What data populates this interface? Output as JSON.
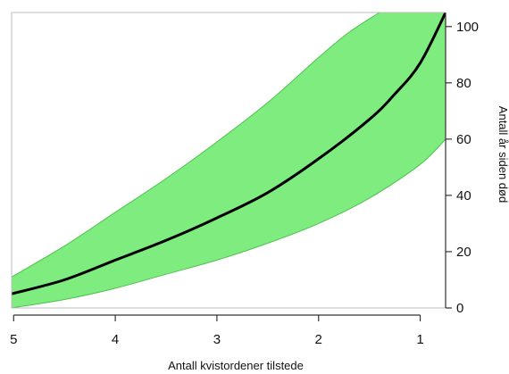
{
  "chart_data": {
    "type": "area",
    "title": "",
    "xlabel": "Antall kvistordener tilstede",
    "ylabel": "Antall år siden død",
    "x_reversed": true,
    "xlim": [
      5.02,
      0.75
    ],
    "ylim": [
      0,
      105
    ],
    "x_ticks": [
      5,
      4,
      3,
      2,
      1
    ],
    "y_ticks": [
      0,
      20,
      40,
      60,
      80,
      100
    ],
    "y_axis_side": "right",
    "grid": false,
    "legend": "none",
    "colors": {
      "band_fill": "#7fec7f",
      "band_edge": "#4fc04f",
      "line": "#000000",
      "axis": "#333333"
    },
    "series": [
      {
        "role": "upper-bound",
        "x": [
          5.02,
          4.5,
          4.0,
          3.5,
          3.0,
          2.5,
          2.0,
          1.7,
          1.4
        ],
        "y": [
          11,
          22,
          34,
          46,
          59,
          73,
          89,
          98,
          105
        ]
      },
      {
        "role": "estimate",
        "x": [
          5.02,
          4.5,
          4.0,
          3.5,
          3.0,
          2.5,
          2.0,
          1.5,
          1.25,
          1.0,
          0.75
        ],
        "y": [
          5,
          10,
          17,
          24,
          32,
          41,
          53,
          67,
          76,
          87,
          105
        ]
      },
      {
        "role": "lower-bound",
        "x": [
          5.02,
          4.5,
          4.0,
          3.5,
          3.0,
          2.5,
          2.0,
          1.5,
          1.0,
          0.75
        ],
        "y": [
          0,
          3,
          7,
          12,
          17,
          23,
          30,
          39,
          51,
          60
        ]
      }
    ]
  }
}
